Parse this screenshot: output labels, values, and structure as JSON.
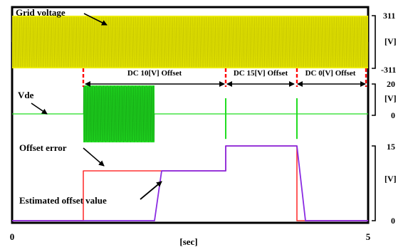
{
  "chart_data": {
    "type": "line",
    "xlabel": "[sec]",
    "xlim": [
      0,
      5
    ],
    "x_ticks": [
      "0",
      "5"
    ],
    "segment_times": [
      0,
      1.0,
      3.0,
      4.0,
      5.0
    ],
    "offset_annotations": [
      "DC 10[V] Offset",
      "DC 15[V] Offset",
      "DC 0[V] Offset"
    ],
    "panels": [
      {
        "key": "grid",
        "label": "Grid voltage",
        "unit": "[V]",
        "ylim": [
          -311,
          311
        ],
        "y_ticks": [
          "311",
          "[V]",
          "-311"
        ],
        "color": "#eeee00",
        "edge_color": "#b0b000",
        "series": [
          {
            "amplitude": 311,
            "frequency_hz": 60
          }
        ]
      },
      {
        "key": "vde",
        "label": "Vde",
        "unit": "[V]",
        "ylim": [
          -20,
          20
        ],
        "y_ticks": [
          "20",
          "[V]",
          "0"
        ],
        "color": "#22dd22",
        "series": [
          {
            "oscillation_window": [
              1.0,
              2.0
            ],
            "oscillation_amplitude": 20,
            "transient_times": [
              3.0,
              4.0
            ],
            "transient_amplitude": 5
          }
        ]
      },
      {
        "key": "offset",
        "label_offset_error": "Offset error",
        "label_estimated": "Estimated offset value",
        "unit": "[V]",
        "ylim": [
          0,
          15
        ],
        "y_ticks": [
          "15",
          "[V]",
          "0"
        ],
        "series": [
          {
            "name": "Offset error",
            "color": "#ff3333",
            "x": [
              0,
              1.0,
              1.0,
              3.0,
              3.0,
              4.0,
              4.0,
              5.0
            ],
            "y": [
              0,
              0,
              10,
              10,
              15,
              15,
              0,
              0
            ]
          },
          {
            "name": "Estimated offset value",
            "color": "#8a2be2",
            "x": [
              0,
              1.0,
              2.0,
              2.1,
              3.0,
              3.0,
              4.0,
              4.12,
              5.0
            ],
            "y": [
              0,
              0,
              0,
              10,
              10,
              15,
              15,
              0,
              0
            ]
          }
        ]
      }
    ]
  }
}
